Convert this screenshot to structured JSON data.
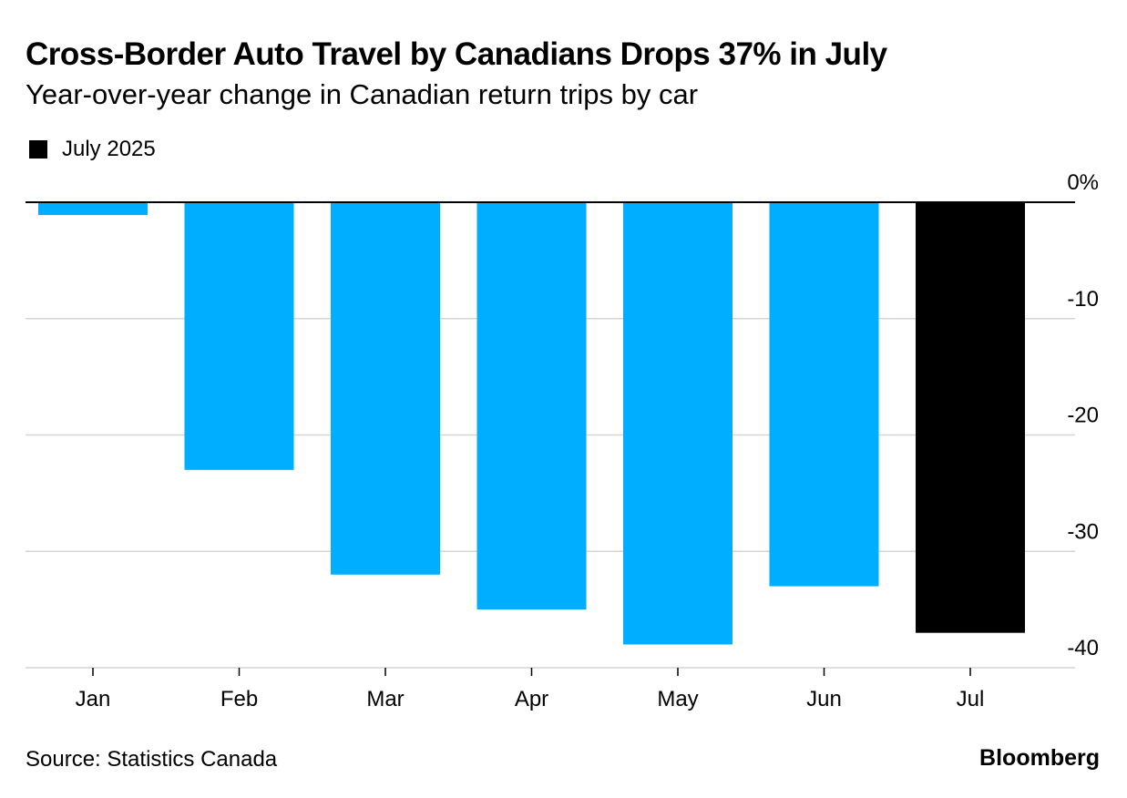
{
  "header": {
    "title": "Cross-Border Auto Travel by Canadians Drops 37% in July",
    "subtitle": "Year-over-year change in Canadian return trips by car"
  },
  "legend": {
    "label": "July 2025",
    "color": "#000000"
  },
  "footer": {
    "source": "Source: Statistics Canada",
    "brand": "Bloomberg"
  },
  "colors": {
    "bar": "#00aeff",
    "highlight": "#000000",
    "grid": "#d4d4d4",
    "zero_line": "#000000"
  },
  "chart_data": {
    "type": "bar",
    "categories": [
      "Jan",
      "Feb",
      "Mar",
      "Apr",
      "May",
      "Jun",
      "Jul"
    ],
    "values": [
      -1.1,
      -23.0,
      -32.0,
      -35.0,
      -38.0,
      -33.0,
      -37.0
    ],
    "highlight_index": 6,
    "ylim": [
      -40,
      0
    ],
    "yticks": [
      0,
      -10,
      -20,
      -30,
      -40
    ],
    "ytick_labels": [
      "0%",
      "-10",
      "-20",
      "-30",
      "-40"
    ],
    "y_axis_position": "right",
    "grid": true
  }
}
